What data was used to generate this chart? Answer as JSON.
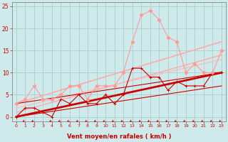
{
  "xlabel": "Vent moyen/en rafales ( km/h )",
  "background_color": "#ceeaea",
  "grid_color": "#aacfcf",
  "xlim": [
    -0.5,
    23.5
  ],
  "ylim": [
    -1,
    26
  ],
  "xticks": [
    0,
    1,
    2,
    3,
    4,
    5,
    6,
    7,
    8,
    9,
    10,
    11,
    12,
    13,
    14,
    15,
    16,
    17,
    18,
    19,
    20,
    21,
    22,
    23
  ],
  "yticks": [
    0,
    5,
    10,
    15,
    20,
    25
  ],
  "series": [
    {
      "x": [
        0,
        1,
        2,
        3,
        4,
        5,
        6,
        7,
        8,
        9,
        10,
        11,
        12,
        13,
        14,
        15,
        16,
        17,
        18,
        19,
        20,
        21,
        22,
        23
      ],
      "y": [
        0,
        2,
        2,
        1,
        0,
        4,
        3,
        5,
        3,
        3,
        5,
        3,
        5,
        11,
        11,
        9,
        9,
        6,
        8,
        7,
        7,
        7,
        10,
        10
      ],
      "color": "#cc0000",
      "linewidth": 0.8,
      "marker": "+",
      "markersize": 3,
      "zorder": 4
    },
    {
      "x": [
        0,
        1,
        2,
        3,
        4,
        5,
        6,
        7,
        8,
        9,
        10,
        11,
        12,
        13,
        14,
        15,
        16,
        17,
        18,
        19,
        20,
        21,
        22,
        23
      ],
      "y": [
        3,
        4,
        7,
        4,
        4,
        5,
        7,
        7,
        4,
        7,
        7,
        7,
        10,
        17,
        23,
        24,
        22,
        18,
        17,
        10,
        12,
        10,
        10,
        15
      ],
      "color": "#ff9999",
      "linewidth": 0.8,
      "marker": "D",
      "markersize": 2.5,
      "zorder": 4
    },
    {
      "x": [
        0,
        23
      ],
      "y": [
        3,
        17
      ],
      "color": "#ffaaaa",
      "linewidth": 1.2,
      "marker": null,
      "markersize": 0,
      "zorder": 2
    },
    {
      "x": [
        0,
        23
      ],
      "y": [
        1,
        14
      ],
      "color": "#ffaaaa",
      "linewidth": 1.0,
      "marker": null,
      "markersize": 0,
      "zorder": 2
    },
    {
      "x": [
        0,
        23
      ],
      "y": [
        0,
        10
      ],
      "color": "#cc0000",
      "linewidth": 2.0,
      "marker": null,
      "markersize": 0,
      "zorder": 3
    },
    {
      "x": [
        0,
        23
      ],
      "y": [
        3,
        10
      ],
      "color": "#cc0000",
      "linewidth": 0.8,
      "marker": null,
      "markersize": 0,
      "zorder": 3
    },
    {
      "x": [
        0,
        23
      ],
      "y": [
        0,
        7
      ],
      "color": "#cc0000",
      "linewidth": 0.8,
      "marker": null,
      "markersize": 0,
      "zorder": 3
    },
    {
      "x": [
        0,
        23
      ],
      "y": [
        2,
        13
      ],
      "color": "#ffbbbb",
      "linewidth": 0.9,
      "marker": null,
      "markersize": 0,
      "zorder": 2
    }
  ],
  "wind_arrows_x": [
    1,
    2,
    4,
    5,
    6,
    7,
    8,
    9,
    10,
    11,
    12,
    13,
    14,
    15,
    16,
    17,
    18,
    19,
    20,
    21,
    22,
    23
  ],
  "arrow_color": "#cc0000"
}
